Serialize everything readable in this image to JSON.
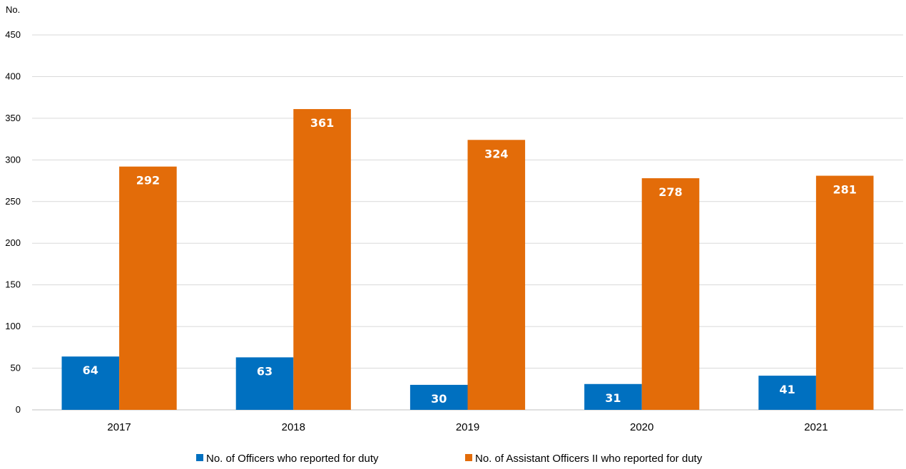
{
  "chart_data": {
    "type": "bar",
    "title": "",
    "ylabel": "No.",
    "xlabel": "",
    "categories": [
      "2017",
      "2018",
      "2019",
      "2020",
      "2021"
    ],
    "ylim": [
      0,
      450
    ],
    "yticks": [
      0,
      50,
      100,
      150,
      200,
      250,
      300,
      350,
      400,
      450
    ],
    "grid": true,
    "legend_position": "bottom",
    "data_labels": true,
    "series": [
      {
        "name": "No. of Officers who reported for duty",
        "color": "#0070C0",
        "values": [
          64,
          63,
          30,
          31,
          41
        ]
      },
      {
        "name": "No. of Assistant Officers II who reported for duty",
        "color": "#E36C09",
        "values": [
          292,
          361,
          324,
          278,
          281
        ]
      }
    ]
  }
}
